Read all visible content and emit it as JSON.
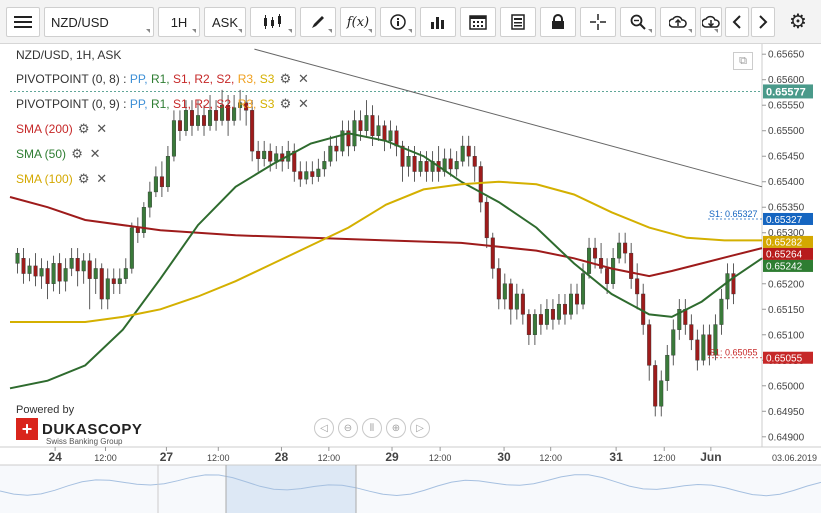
{
  "toolbar": {
    "symbol": "NZD/USD",
    "period": "1H",
    "price_side": "ASK",
    "fx_label": "f(x)"
  },
  "chart_title": "NZD/USD, 1H, ASK",
  "legend": [
    {
      "name": "PIVOTPOINT (0, 8)",
      "parts": [
        {
          "text": "PP",
          "color": "#3d8fd6"
        },
        {
          "text": "R1",
          "color": "#2e7d32"
        },
        {
          "text": "S1",
          "color": "#c62828"
        },
        {
          "text": "R2",
          "color": "#c62828"
        },
        {
          "text": "S2",
          "color": "#c62828"
        },
        {
          "text": "R3",
          "color": "#f0a020"
        },
        {
          "text": "S3",
          "color": "#d4b000"
        }
      ],
      "color": "#333333"
    },
    {
      "name": "PIVOTPOINT (0, 9)",
      "parts": [
        {
          "text": "PP",
          "color": "#3d8fd6"
        },
        {
          "text": "R1",
          "color": "#2e7d32"
        },
        {
          "text": "S1",
          "color": "#c62828"
        },
        {
          "text": "R2",
          "color": "#c62828"
        },
        {
          "text": "S2",
          "color": "#c62828"
        },
        {
          "text": "R3",
          "color": "#f0a020"
        },
        {
          "text": "S3",
          "color": "#d4b000"
        }
      ],
      "color": "#333333"
    },
    {
      "name": "SMA (200)",
      "parts": [],
      "color": "#c62828"
    },
    {
      "name": "SMA (50)",
      "parts": [],
      "color": "#2e7d32"
    },
    {
      "name": "SMA (100)",
      "parts": [],
      "color": "#d4a800"
    }
  ],
  "branding": {
    "powered": "Powered by",
    "name": "DUKASCOPY",
    "sub": "Swiss Banking Group"
  },
  "chart_data": {
    "type": "candlestick",
    "title": "NZD/USD, 1H, ASK",
    "ylim": [
      0.6488,
      0.6567
    ],
    "y_ticks": [
      "0.65650",
      "0.65600",
      "0.65550",
      "0.65500",
      "0.65450",
      "0.65400",
      "0.65350",
      "0.65300",
      "0.65250",
      "0.65200",
      "0.65150",
      "0.65100",
      "0.65050",
      "0.65000",
      "0.64950",
      "0.64900"
    ],
    "x_labels": [
      {
        "label": "24",
        "bold": true,
        "pos": 0.06
      },
      {
        "label": "12:00",
        "bold": false,
        "pos": 0.127
      },
      {
        "label": "27",
        "bold": true,
        "pos": 0.208
      },
      {
        "label": "12:00",
        "bold": false,
        "pos": 0.277
      },
      {
        "label": "28",
        "bold": true,
        "pos": 0.361
      },
      {
        "label": "12:00",
        "bold": false,
        "pos": 0.424
      },
      {
        "label": "29",
        "bold": true,
        "pos": 0.508
      },
      {
        "label": "12:00",
        "bold": false,
        "pos": 0.572
      },
      {
        "label": "30",
        "bold": true,
        "pos": 0.657
      },
      {
        "label": "12:00",
        "bold": false,
        "pos": 0.719
      },
      {
        "label": "31",
        "bold": true,
        "pos": 0.806
      },
      {
        "label": "12:00",
        "bold": false,
        "pos": 0.87
      },
      {
        "label": "Jun",
        "bold": true,
        "pos": 0.932
      }
    ],
    "date_label": "03.06.2019",
    "current_price": {
      "value": 0.65577,
      "label": "0.65577",
      "color": "#4a9a8a"
    },
    "price_tags": [
      {
        "label": "0.65327",
        "value": 0.65327,
        "color": "#1565c0"
      },
      {
        "label": "0.65282",
        "value": 0.65282,
        "color": "#d4a800"
      },
      {
        "label": "0.65264",
        "value": 0.65264,
        "color": "#b71c1c"
      },
      {
        "label": "0.65242",
        "value": 0.65242,
        "color": "#2e7d32"
      },
      {
        "label": "0.65055",
        "value": 0.65055,
        "color": "#c62828"
      }
    ],
    "pivot_levels": [
      {
        "label": "S1: 0.65327",
        "value": 0.65327,
        "color": "#1565c0"
      },
      {
        "label": "S1: 0.65055",
        "value": 0.65055,
        "color": "#c62828"
      }
    ],
    "series": [
      {
        "name": "SMA (200)",
        "color": "#9e1b1b",
        "points": [
          [
            0,
            0.6537
          ],
          [
            0.05,
            0.6535
          ],
          [
            0.1,
            0.65325
          ],
          [
            0.2,
            0.65305
          ],
          [
            0.3,
            0.65295
          ],
          [
            0.4,
            0.6529
          ],
          [
            0.5,
            0.65285
          ],
          [
            0.6,
            0.6528
          ],
          [
            0.7,
            0.65265
          ],
          [
            0.75,
            0.6525
          ],
          [
            0.8,
            0.6523
          ],
          [
            0.85,
            0.65215
          ],
          [
            0.88,
            0.65225
          ],
          [
            0.92,
            0.6524
          ],
          [
            0.96,
            0.65255
          ],
          [
            1.0,
            0.6527
          ]
        ]
      },
      {
        "name": "SMA (50)",
        "color": "#2e6b2e",
        "points": [
          [
            0,
            0.64995
          ],
          [
            0.05,
            0.6501
          ],
          [
            0.1,
            0.6504
          ],
          [
            0.15,
            0.6511
          ],
          [
            0.2,
            0.6521
          ],
          [
            0.25,
            0.65315
          ],
          [
            0.3,
            0.6539
          ],
          [
            0.35,
            0.65435
          ],
          [
            0.4,
            0.65475
          ],
          [
            0.45,
            0.65495
          ],
          [
            0.5,
            0.6548
          ],
          [
            0.55,
            0.6545
          ],
          [
            0.6,
            0.654
          ],
          [
            0.65,
            0.6536
          ],
          [
            0.7,
            0.6531
          ],
          [
            0.75,
            0.6524
          ],
          [
            0.8,
            0.6518
          ],
          [
            0.85,
            0.6514
          ],
          [
            0.88,
            0.65135
          ],
          [
            0.92,
            0.65165
          ],
          [
            0.96,
            0.6521
          ],
          [
            1.0,
            0.6525
          ]
        ]
      },
      {
        "name": "SMA (100)",
        "color": "#d4b000",
        "points": [
          [
            0,
            0.65125
          ],
          [
            0.05,
            0.65125
          ],
          [
            0.1,
            0.65125
          ],
          [
            0.15,
            0.65135
          ],
          [
            0.2,
            0.6515
          ],
          [
            0.25,
            0.65175
          ],
          [
            0.3,
            0.65205
          ],
          [
            0.35,
            0.6524
          ],
          [
            0.4,
            0.65275
          ],
          [
            0.45,
            0.6531
          ],
          [
            0.5,
            0.65355
          ],
          [
            0.55,
            0.65385
          ],
          [
            0.6,
            0.65395
          ],
          [
            0.65,
            0.654
          ],
          [
            0.7,
            0.65395
          ],
          [
            0.75,
            0.65375
          ],
          [
            0.8,
            0.6534
          ],
          [
            0.85,
            0.6531
          ],
          [
            0.9,
            0.6529
          ],
          [
            0.95,
            0.65285
          ],
          [
            1.0,
            0.65285
          ]
        ]
      },
      {
        "name": "Trendline",
        "color": "#666666",
        "points": [
          [
            0.325,
            0.6566
          ],
          [
            1.0,
            0.6539
          ]
        ]
      }
    ],
    "candles": [
      [
        0.01,
        0.6524,
        0.6526,
        0.6527,
        0.6522
      ],
      [
        0.018,
        0.6525,
        0.6522,
        0.6527,
        0.652
      ],
      [
        0.026,
        0.6522,
        0.65235,
        0.6525,
        0.65205
      ],
      [
        0.034,
        0.65235,
        0.65215,
        0.6526,
        0.65195
      ],
      [
        0.042,
        0.65215,
        0.6523,
        0.6525,
        0.6519
      ],
      [
        0.05,
        0.6523,
        0.652,
        0.65245,
        0.6517
      ],
      [
        0.058,
        0.652,
        0.6524,
        0.65255,
        0.65185
      ],
      [
        0.066,
        0.6524,
        0.65205,
        0.6526,
        0.6518
      ],
      [
        0.074,
        0.65205,
        0.6523,
        0.6525,
        0.65185
      ],
      [
        0.082,
        0.6523,
        0.6525,
        0.6527,
        0.65215
      ],
      [
        0.09,
        0.6525,
        0.65225,
        0.6527,
        0.65195
      ],
      [
        0.098,
        0.65225,
        0.65245,
        0.6526,
        0.652
      ],
      [
        0.106,
        0.65245,
        0.6521,
        0.6526,
        0.6515
      ],
      [
        0.114,
        0.6521,
        0.6523,
        0.6525,
        0.6518
      ],
      [
        0.122,
        0.6523,
        0.6517,
        0.6524,
        0.6515
      ],
      [
        0.13,
        0.6517,
        0.6521,
        0.6523,
        0.6515
      ],
      [
        0.138,
        0.6521,
        0.652,
        0.6523,
        0.6518
      ],
      [
        0.146,
        0.652,
        0.6521,
        0.6523,
        0.6518
      ],
      [
        0.154,
        0.6521,
        0.6523,
        0.6525,
        0.652
      ],
      [
        0.162,
        0.6523,
        0.6531,
        0.6532,
        0.6522
      ],
      [
        0.17,
        0.6531,
        0.653,
        0.6533,
        0.6528
      ],
      [
        0.178,
        0.653,
        0.6535,
        0.6536,
        0.6529
      ],
      [
        0.186,
        0.6535,
        0.6538,
        0.654,
        0.6533
      ],
      [
        0.194,
        0.6538,
        0.6541,
        0.6543,
        0.6537
      ],
      [
        0.202,
        0.6541,
        0.6539,
        0.6544,
        0.6537
      ],
      [
        0.21,
        0.6539,
        0.6545,
        0.6547,
        0.6538
      ],
      [
        0.218,
        0.6545,
        0.6552,
        0.6554,
        0.6544
      ],
      [
        0.226,
        0.6552,
        0.655,
        0.6554,
        0.6548
      ],
      [
        0.234,
        0.655,
        0.6554,
        0.6556,
        0.6549
      ],
      [
        0.242,
        0.6554,
        0.6551,
        0.6556,
        0.6549
      ],
      [
        0.25,
        0.6551,
        0.6553,
        0.6556,
        0.655
      ],
      [
        0.258,
        0.6553,
        0.6551,
        0.6555,
        0.6549
      ],
      [
        0.266,
        0.6551,
        0.6554,
        0.6557,
        0.655
      ],
      [
        0.274,
        0.6554,
        0.6552,
        0.6556,
        0.655
      ],
      [
        0.282,
        0.6552,
        0.6555,
        0.6558,
        0.6551
      ],
      [
        0.29,
        0.6555,
        0.6552,
        0.6557,
        0.6549
      ],
      [
        0.298,
        0.6552,
        0.65545,
        0.6557,
        0.6551
      ],
      [
        0.306,
        0.65545,
        0.65555,
        0.6558,
        0.6552
      ],
      [
        0.314,
        0.65555,
        0.6554,
        0.6557,
        0.6551
      ],
      [
        0.322,
        0.6554,
        0.6546,
        0.6556,
        0.6544
      ],
      [
        0.33,
        0.6546,
        0.65445,
        0.6548,
        0.6542
      ],
      [
        0.338,
        0.65445,
        0.6546,
        0.6548,
        0.6543
      ],
      [
        0.346,
        0.6546,
        0.6544,
        0.65475,
        0.6542
      ],
      [
        0.354,
        0.6544,
        0.65455,
        0.6547,
        0.65425
      ],
      [
        0.362,
        0.65455,
        0.6544,
        0.6547,
        0.6542
      ],
      [
        0.37,
        0.6544,
        0.6546,
        0.6548,
        0.65425
      ],
      [
        0.378,
        0.6546,
        0.6542,
        0.65475,
        0.654
      ],
      [
        0.386,
        0.6542,
        0.65405,
        0.6544,
        0.6539
      ],
      [
        0.394,
        0.65405,
        0.6542,
        0.6544,
        0.65395
      ],
      [
        0.402,
        0.6542,
        0.6541,
        0.6544,
        0.65395
      ],
      [
        0.41,
        0.6541,
        0.65425,
        0.65445,
        0.654
      ],
      [
        0.418,
        0.65425,
        0.6544,
        0.6546,
        0.6541
      ],
      [
        0.426,
        0.6544,
        0.6547,
        0.6549,
        0.6543
      ],
      [
        0.434,
        0.6547,
        0.6546,
        0.6549,
        0.6544
      ],
      [
        0.442,
        0.6546,
        0.655,
        0.6552,
        0.6545
      ],
      [
        0.45,
        0.655,
        0.6547,
        0.6552,
        0.6545
      ],
      [
        0.458,
        0.6547,
        0.6552,
        0.6554,
        0.6546
      ],
      [
        0.466,
        0.6552,
        0.655,
        0.6554,
        0.6548
      ],
      [
        0.474,
        0.655,
        0.6553,
        0.6556,
        0.6549
      ],
      [
        0.482,
        0.6553,
        0.6549,
        0.6555,
        0.6547
      ],
      [
        0.49,
        0.6549,
        0.6551,
        0.6553,
        0.6548
      ],
      [
        0.498,
        0.6551,
        0.6548,
        0.6552,
        0.6546
      ],
      [
        0.506,
        0.6548,
        0.655,
        0.6552,
        0.65465
      ],
      [
        0.514,
        0.655,
        0.6547,
        0.6551,
        0.6545
      ],
      [
        0.522,
        0.6547,
        0.6543,
        0.6548,
        0.654
      ],
      [
        0.53,
        0.6543,
        0.6545,
        0.6547,
        0.6541
      ],
      [
        0.538,
        0.6545,
        0.6542,
        0.6547,
        0.654
      ],
      [
        0.546,
        0.6542,
        0.6544,
        0.6546,
        0.6541
      ],
      [
        0.554,
        0.6544,
        0.6542,
        0.6546,
        0.654
      ],
      [
        0.562,
        0.6542,
        0.6544,
        0.6546,
        0.654
      ],
      [
        0.57,
        0.6544,
        0.6542,
        0.6547,
        0.654
      ],
      [
        0.578,
        0.6542,
        0.65445,
        0.65465,
        0.6541
      ],
      [
        0.586,
        0.65445,
        0.65425,
        0.65465,
        0.6541
      ],
      [
        0.594,
        0.65425,
        0.6544,
        0.6546,
        0.6541
      ],
      [
        0.602,
        0.6544,
        0.6547,
        0.6549,
        0.6543
      ],
      [
        0.61,
        0.6547,
        0.6545,
        0.6549,
        0.6543
      ],
      [
        0.618,
        0.6545,
        0.6543,
        0.6547,
        0.654
      ],
      [
        0.626,
        0.6543,
        0.6536,
        0.6544,
        0.6534
      ],
      [
        0.634,
        0.6536,
        0.6529,
        0.6537,
        0.6527
      ],
      [
        0.642,
        0.6529,
        0.6523,
        0.653,
        0.6521
      ],
      [
        0.65,
        0.6523,
        0.6517,
        0.6525,
        0.6515
      ],
      [
        0.658,
        0.6517,
        0.652,
        0.6522,
        0.6515
      ],
      [
        0.666,
        0.652,
        0.6515,
        0.6521,
        0.6512
      ],
      [
        0.674,
        0.6515,
        0.6518,
        0.652,
        0.6513
      ],
      [
        0.682,
        0.6518,
        0.6514,
        0.6519,
        0.6512
      ],
      [
        0.69,
        0.6514,
        0.651,
        0.6515,
        0.6508
      ],
      [
        0.698,
        0.651,
        0.6514,
        0.6515,
        0.6508
      ],
      [
        0.706,
        0.6514,
        0.6512,
        0.6516,
        0.651
      ],
      [
        0.714,
        0.6512,
        0.6515,
        0.6517,
        0.6511
      ],
      [
        0.722,
        0.6515,
        0.6513,
        0.6517,
        0.6511
      ],
      [
        0.73,
        0.6513,
        0.6516,
        0.6518,
        0.6512
      ],
      [
        0.738,
        0.6516,
        0.6514,
        0.6518,
        0.6512
      ],
      [
        0.746,
        0.6514,
        0.6518,
        0.652,
        0.6513
      ],
      [
        0.754,
        0.6518,
        0.6516,
        0.652,
        0.6514
      ],
      [
        0.762,
        0.6516,
        0.6522,
        0.6524,
        0.6515
      ],
      [
        0.77,
        0.6522,
        0.6527,
        0.6529,
        0.6521
      ],
      [
        0.778,
        0.6527,
        0.6525,
        0.6529,
        0.6523
      ],
      [
        0.786,
        0.6525,
        0.6523,
        0.6528,
        0.6522
      ],
      [
        0.794,
        0.6523,
        0.652,
        0.6525,
        0.6518
      ],
      [
        0.802,
        0.652,
        0.6525,
        0.6527,
        0.6519
      ],
      [
        0.81,
        0.6525,
        0.6528,
        0.653,
        0.6524
      ],
      [
        0.818,
        0.6528,
        0.6526,
        0.653,
        0.6524
      ],
      [
        0.826,
        0.6526,
        0.6521,
        0.6528,
        0.6519
      ],
      [
        0.834,
        0.6521,
        0.6518,
        0.6524,
        0.6515
      ],
      [
        0.842,
        0.6518,
        0.6512,
        0.652,
        0.651
      ],
      [
        0.85,
        0.6512,
        0.6504,
        0.6513,
        0.6501
      ],
      [
        0.858,
        0.6504,
        0.6496,
        0.6505,
        0.6494
      ],
      [
        0.866,
        0.6496,
        0.6501,
        0.6503,
        0.6494
      ],
      [
        0.874,
        0.6501,
        0.6506,
        0.6508,
        0.6499
      ],
      [
        0.882,
        0.6506,
        0.6511,
        0.6513,
        0.6504
      ],
      [
        0.89,
        0.6511,
        0.6515,
        0.6517,
        0.6509
      ],
      [
        0.898,
        0.6515,
        0.6512,
        0.6517,
        0.651
      ],
      [
        0.906,
        0.6512,
        0.6509,
        0.6514,
        0.6507
      ],
      [
        0.914,
        0.6509,
        0.6505,
        0.6511,
        0.6503
      ],
      [
        0.922,
        0.6505,
        0.651,
        0.6512,
        0.6504
      ],
      [
        0.93,
        0.651,
        0.6506,
        0.6512,
        0.6504
      ],
      [
        0.938,
        0.6506,
        0.6512,
        0.6514,
        0.6505
      ],
      [
        0.946,
        0.6512,
        0.6517,
        0.6519,
        0.651
      ],
      [
        0.954,
        0.6517,
        0.6522,
        0.6524,
        0.6515
      ],
      [
        0.962,
        0.6522,
        0.6518,
        0.6524,
        0.6516
      ]
    ]
  }
}
